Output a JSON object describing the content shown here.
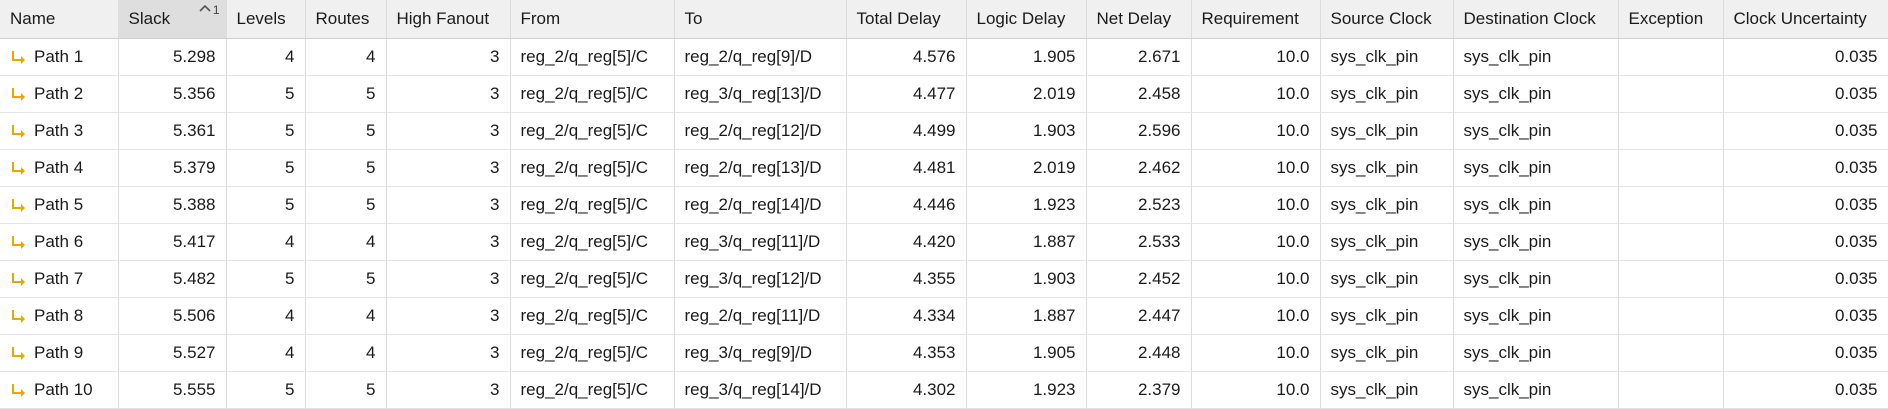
{
  "colors": {
    "header_bg": "#f0f0f0",
    "sorted_header_bg": "#dedede",
    "grid_line": "#e4e4e4",
    "path_icon": "#e8a800"
  },
  "table": {
    "sort": {
      "column": "Slack",
      "direction": "ascending",
      "priority": "1",
      "icon": "caret-up-icon"
    },
    "row_icon": "path-arrow-icon",
    "columns": [
      "Name",
      "Slack",
      "Levels",
      "Routes",
      "High Fanout",
      "From",
      "To",
      "Total Delay",
      "Logic Delay",
      "Net Delay",
      "Requirement",
      "Source Clock",
      "Destination Clock",
      "Exception",
      "Clock Uncertainty"
    ],
    "rows": [
      {
        "name": "Path 1",
        "slack": "5.298",
        "levels": "4",
        "routes": "4",
        "fanout": "3",
        "from": "reg_2/q_reg[5]/C",
        "to": "reg_2/q_reg[9]/D",
        "total": "4.576",
        "logic": "1.905",
        "net": "2.671",
        "req": "10.0",
        "src": "sys_clk_pin",
        "dst": "sys_clk_pin",
        "exc": "",
        "unc": "0.035"
      },
      {
        "name": "Path 2",
        "slack": "5.356",
        "levels": "5",
        "routes": "5",
        "fanout": "3",
        "from": "reg_2/q_reg[5]/C",
        "to": "reg_3/q_reg[13]/D",
        "total": "4.477",
        "logic": "2.019",
        "net": "2.458",
        "req": "10.0",
        "src": "sys_clk_pin",
        "dst": "sys_clk_pin",
        "exc": "",
        "unc": "0.035"
      },
      {
        "name": "Path 3",
        "slack": "5.361",
        "levels": "5",
        "routes": "5",
        "fanout": "3",
        "from": "reg_2/q_reg[5]/C",
        "to": "reg_2/q_reg[12]/D",
        "total": "4.499",
        "logic": "1.903",
        "net": "2.596",
        "req": "10.0",
        "src": "sys_clk_pin",
        "dst": "sys_clk_pin",
        "exc": "",
        "unc": "0.035"
      },
      {
        "name": "Path 4",
        "slack": "5.379",
        "levels": "5",
        "routes": "5",
        "fanout": "3",
        "from": "reg_2/q_reg[5]/C",
        "to": "reg_2/q_reg[13]/D",
        "total": "4.481",
        "logic": "2.019",
        "net": "2.462",
        "req": "10.0",
        "src": "sys_clk_pin",
        "dst": "sys_clk_pin",
        "exc": "",
        "unc": "0.035"
      },
      {
        "name": "Path 5",
        "slack": "5.388",
        "levels": "5",
        "routes": "5",
        "fanout": "3",
        "from": "reg_2/q_reg[5]/C",
        "to": "reg_2/q_reg[14]/D",
        "total": "4.446",
        "logic": "1.923",
        "net": "2.523",
        "req": "10.0",
        "src": "sys_clk_pin",
        "dst": "sys_clk_pin",
        "exc": "",
        "unc": "0.035"
      },
      {
        "name": "Path 6",
        "slack": "5.417",
        "levels": "4",
        "routes": "4",
        "fanout": "3",
        "from": "reg_2/q_reg[5]/C",
        "to": "reg_3/q_reg[11]/D",
        "total": "4.420",
        "logic": "1.887",
        "net": "2.533",
        "req": "10.0",
        "src": "sys_clk_pin",
        "dst": "sys_clk_pin",
        "exc": "",
        "unc": "0.035"
      },
      {
        "name": "Path 7",
        "slack": "5.482",
        "levels": "5",
        "routes": "5",
        "fanout": "3",
        "from": "reg_2/q_reg[5]/C",
        "to": "reg_3/q_reg[12]/D",
        "total": "4.355",
        "logic": "1.903",
        "net": "2.452",
        "req": "10.0",
        "src": "sys_clk_pin",
        "dst": "sys_clk_pin",
        "exc": "",
        "unc": "0.035"
      },
      {
        "name": "Path 8",
        "slack": "5.506",
        "levels": "4",
        "routes": "4",
        "fanout": "3",
        "from": "reg_2/q_reg[5]/C",
        "to": "reg_2/q_reg[11]/D",
        "total": "4.334",
        "logic": "1.887",
        "net": "2.447",
        "req": "10.0",
        "src": "sys_clk_pin",
        "dst": "sys_clk_pin",
        "exc": "",
        "unc": "0.035"
      },
      {
        "name": "Path 9",
        "slack": "5.527",
        "levels": "4",
        "routes": "4",
        "fanout": "3",
        "from": "reg_2/q_reg[5]/C",
        "to": "reg_3/q_reg[9]/D",
        "total": "4.353",
        "logic": "1.905",
        "net": "2.448",
        "req": "10.0",
        "src": "sys_clk_pin",
        "dst": "sys_clk_pin",
        "exc": "",
        "unc": "0.035"
      },
      {
        "name": "Path 10",
        "slack": "5.555",
        "levels": "5",
        "routes": "5",
        "fanout": "3",
        "from": "reg_2/q_reg[5]/C",
        "to": "reg_3/q_reg[14]/D",
        "total": "4.302",
        "logic": "1.923",
        "net": "2.379",
        "req": "10.0",
        "src": "sys_clk_pin",
        "dst": "sys_clk_pin",
        "exc": "",
        "unc": "0.035"
      }
    ]
  }
}
